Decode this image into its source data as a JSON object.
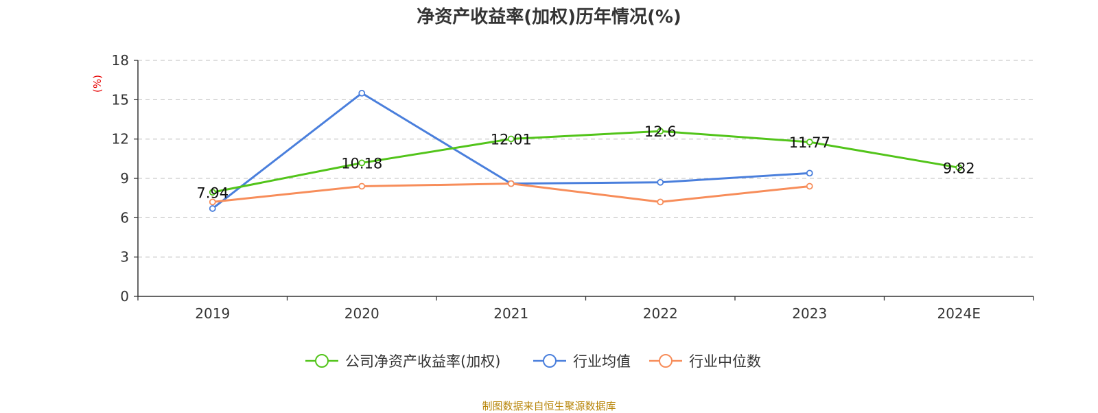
{
  "chart_data": {
    "type": "line",
    "title": "净资产收益率(加权)历年情况(%)",
    "ylabel": "(%)",
    "categories": [
      "2019",
      "2020",
      "2021",
      "2022",
      "2023",
      "2024E"
    ],
    "ylim": [
      0,
      18
    ],
    "yticks": [
      0,
      3,
      6,
      9,
      12,
      15,
      18
    ],
    "grid": true,
    "legend_position": "bottom",
    "series": [
      {
        "name": "公司净资产收益率(加权)",
        "color": "#52c41a",
        "values": [
          7.94,
          10.18,
          12.01,
          12.6,
          11.77,
          9.82
        ],
        "labels": [
          "7.94",
          "10.18",
          "12.01",
          "12.6",
          "11.77",
          "9.82"
        ]
      },
      {
        "name": "行业均值",
        "color": "#4a7fdc",
        "values": [
          6.7,
          15.5,
          8.6,
          8.7,
          9.4,
          null
        ]
      },
      {
        "name": "行业中位数",
        "color": "#f78d5a",
        "values": [
          7.2,
          8.4,
          8.6,
          7.2,
          8.4,
          null
        ]
      }
    ]
  },
  "footer": {
    "source": "制图数据来自恒生聚源数据库"
  }
}
